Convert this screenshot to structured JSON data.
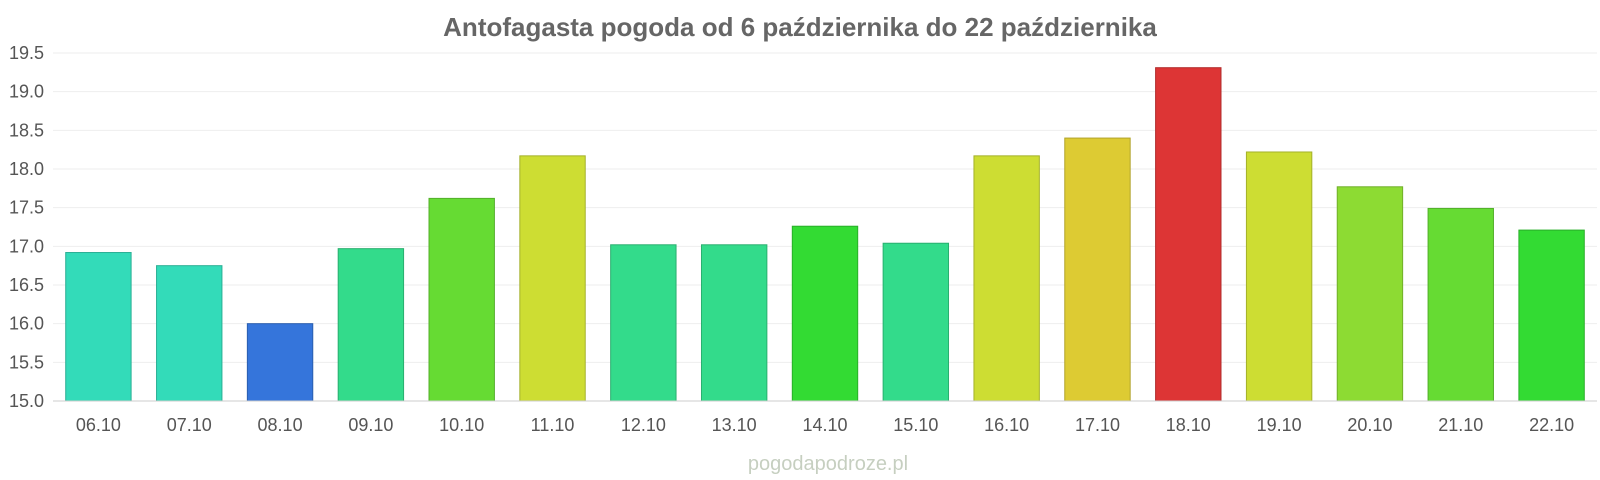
{
  "watermark": "pogodapodroze.pl",
  "chart_data": {
    "type": "bar",
    "title": "Antofagasta pogoda od 6 października do 22 października",
    "xlabel": "",
    "ylabel": "",
    "ylim": [
      15.0,
      19.5
    ],
    "yticks": [
      "15.0",
      "15.5",
      "16.0",
      "16.5",
      "17.0",
      "17.5",
      "18.0",
      "18.5",
      "19.0",
      "19.5"
    ],
    "grid": true,
    "legend": "none",
    "categories": [
      "06.10",
      "07.10",
      "08.10",
      "09.10",
      "10.10",
      "11.10",
      "12.10",
      "13.10",
      "14.10",
      "15.10",
      "16.10",
      "17.10",
      "18.10",
      "19.10",
      "20.10",
      "21.10",
      "22.10"
    ],
    "values": [
      16.92,
      16.75,
      16.0,
      16.97,
      17.62,
      18.17,
      17.02,
      17.02,
      17.26,
      17.04,
      18.17,
      18.4,
      19.31,
      18.22,
      17.77,
      17.49,
      17.21
    ],
    "colors": [
      "#33dbb9",
      "#33dbb9",
      "#3575db",
      "#33db8b",
      "#66db33",
      "#cddd33",
      "#33db8b",
      "#33db8b",
      "#33db33",
      "#33db8b",
      "#cddd33",
      "#ddcb33",
      "#dd3535",
      "#cddd33",
      "#8ddb33",
      "#66db33",
      "#33db33"
    ]
  }
}
